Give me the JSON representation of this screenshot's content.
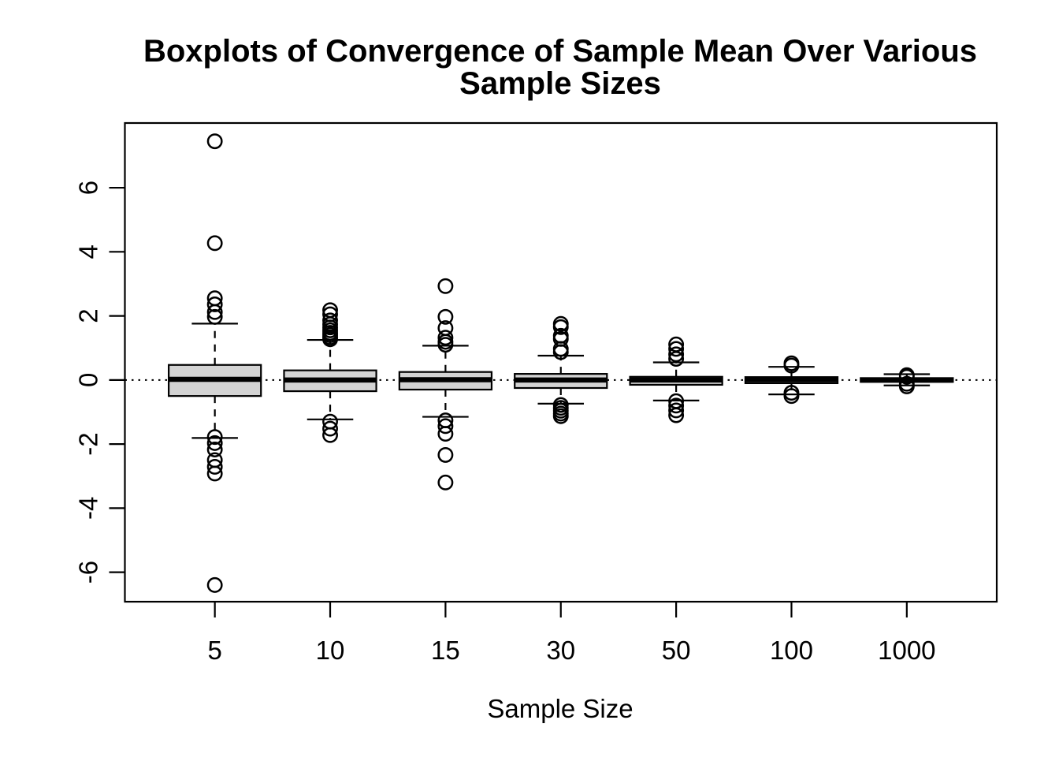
{
  "figure": {
    "title_line1": "Boxplots of Convergence of Sample Mean Over Various",
    "title_line2": "Sample Sizes",
    "xlabel": "Sample Size"
  },
  "chart_data": {
    "type": "boxplot",
    "title": "Boxplots of Convergence of Sample Mean Over Various Sample Sizes",
    "xlabel": "Sample Size",
    "ylabel": "",
    "categories": [
      "5",
      "10",
      "15",
      "30",
      "50",
      "100",
      "1000"
    ],
    "y_ticks": [
      -6,
      -4,
      -2,
      0,
      2,
      4,
      6
    ],
    "ylim": [
      -6.92,
      8.02
    ],
    "xlim_group_units": [
      0.22,
      7.78
    ],
    "grid": false,
    "legend": "none",
    "reference_line": {
      "y": 0,
      "style": "dotted"
    },
    "box_width_units": 0.8,
    "cap_width_units": 0.4,
    "colors": {
      "box_fill": "#D3D3D3",
      "stroke": "#000000",
      "background": "#FFFFFF"
    },
    "groups": [
      {
        "label": "5",
        "stats": {
          "whisker_low": -1.81,
          "q1": -0.5,
          "median": 0.02,
          "q3": 0.47,
          "whisker_high": 1.76
        },
        "outliers": [
          7.45,
          4.27,
          2.55,
          2.36,
          2.12,
          1.97,
          -1.78,
          -1.97,
          -2.17,
          -2.5,
          -2.71,
          -2.92,
          -6.4
        ]
      },
      {
        "label": "10",
        "stats": {
          "whisker_low": -1.23,
          "q1": -0.35,
          "median": 0.0,
          "q3": 0.3,
          "whisker_high": 1.25
        },
        "outliers": [
          2.18,
          2.05,
          1.86,
          1.74,
          1.64,
          1.55,
          1.47,
          1.4,
          1.33,
          1.27,
          -1.3,
          -1.52,
          -1.72
        ]
      },
      {
        "label": "15",
        "stats": {
          "whisker_low": -1.15,
          "q1": -0.3,
          "median": 0.01,
          "q3": 0.25,
          "whisker_high": 1.07
        },
        "outliers": [
          2.93,
          1.97,
          1.62,
          1.32,
          1.19,
          1.1,
          -1.26,
          -1.44,
          -1.68,
          -2.34,
          -3.2
        ]
      },
      {
        "label": "30",
        "stats": {
          "whisker_low": -0.74,
          "q1": -0.25,
          "median": 0.0,
          "q3": 0.19,
          "whisker_high": 0.76
        },
        "outliers": [
          1.75,
          1.65,
          1.38,
          1.28,
          0.97,
          0.87,
          -0.78,
          -0.87,
          -0.96,
          -1.05,
          -1.13
        ]
      },
      {
        "label": "50",
        "stats": {
          "whisker_low": -0.64,
          "q1": -0.15,
          "median": 0.0,
          "q3": 0.1,
          "whisker_high": 0.55
        },
        "outliers": [
          1.11,
          0.97,
          0.8,
          0.66,
          -0.66,
          -0.8,
          -0.95,
          -1.1
        ]
      },
      {
        "label": "100",
        "stats": {
          "whisker_low": -0.45,
          "q1": -0.1,
          "median": 0.01,
          "q3": 0.09,
          "whisker_high": 0.41
        },
        "outliers": [
          0.52,
          0.45,
          -0.4,
          -0.5
        ]
      },
      {
        "label": "1000",
        "stats": {
          "whisker_low": -0.17,
          "q1": -0.06,
          "median": 0.0,
          "q3": 0.06,
          "whisker_high": 0.18
        },
        "outliers": [
          0.15,
          0.1,
          -0.12,
          -0.2
        ]
      }
    ]
  }
}
